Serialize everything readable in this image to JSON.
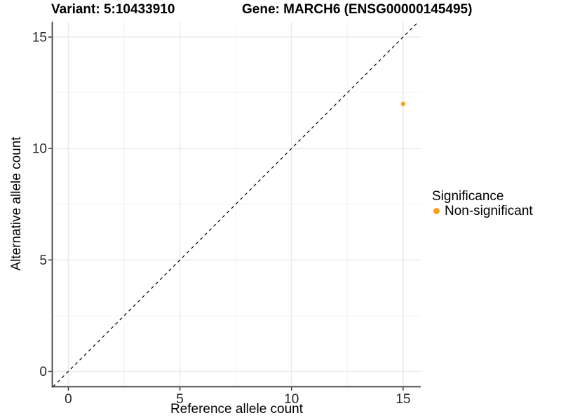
{
  "chart_data": {
    "type": "scatter",
    "titles": {
      "left": "Variant: 5:10433910",
      "right": "Gene: MARCH6 (ENSG00000145495)"
    },
    "xlabel": "Reference allele count",
    "ylabel": "Alternative allele count",
    "x_ticks": [
      0,
      5,
      10,
      15
    ],
    "y_ticks": [
      0,
      5,
      10,
      15
    ],
    "x_minor_ticks": [
      2.5,
      7.5,
      12.5
    ],
    "y_minor_ticks": [
      2.5,
      7.5,
      12.5
    ],
    "xlim": [
      -0.72,
      15.79
    ],
    "ylim": [
      -0.69,
      15.69
    ],
    "points": [
      {
        "x": 15,
        "y": 12,
        "series": "Non-significant"
      }
    ],
    "reference_line": {
      "type": "identity",
      "slope": 1,
      "intercept": 0,
      "style": "dashed",
      "color": "#000000"
    },
    "legend": {
      "title": "Significance",
      "position": "right",
      "entries": [
        {
          "label": "Non-significant",
          "color": "#F9A11C"
        }
      ]
    },
    "grid": {
      "major_color": "#E8E8E8",
      "minor_color": "#F2F2F2",
      "background": "#FFFFFF"
    },
    "axis": {
      "line_color": "#404040",
      "tick_color": "#333333",
      "text_color": "#262626"
    }
  }
}
